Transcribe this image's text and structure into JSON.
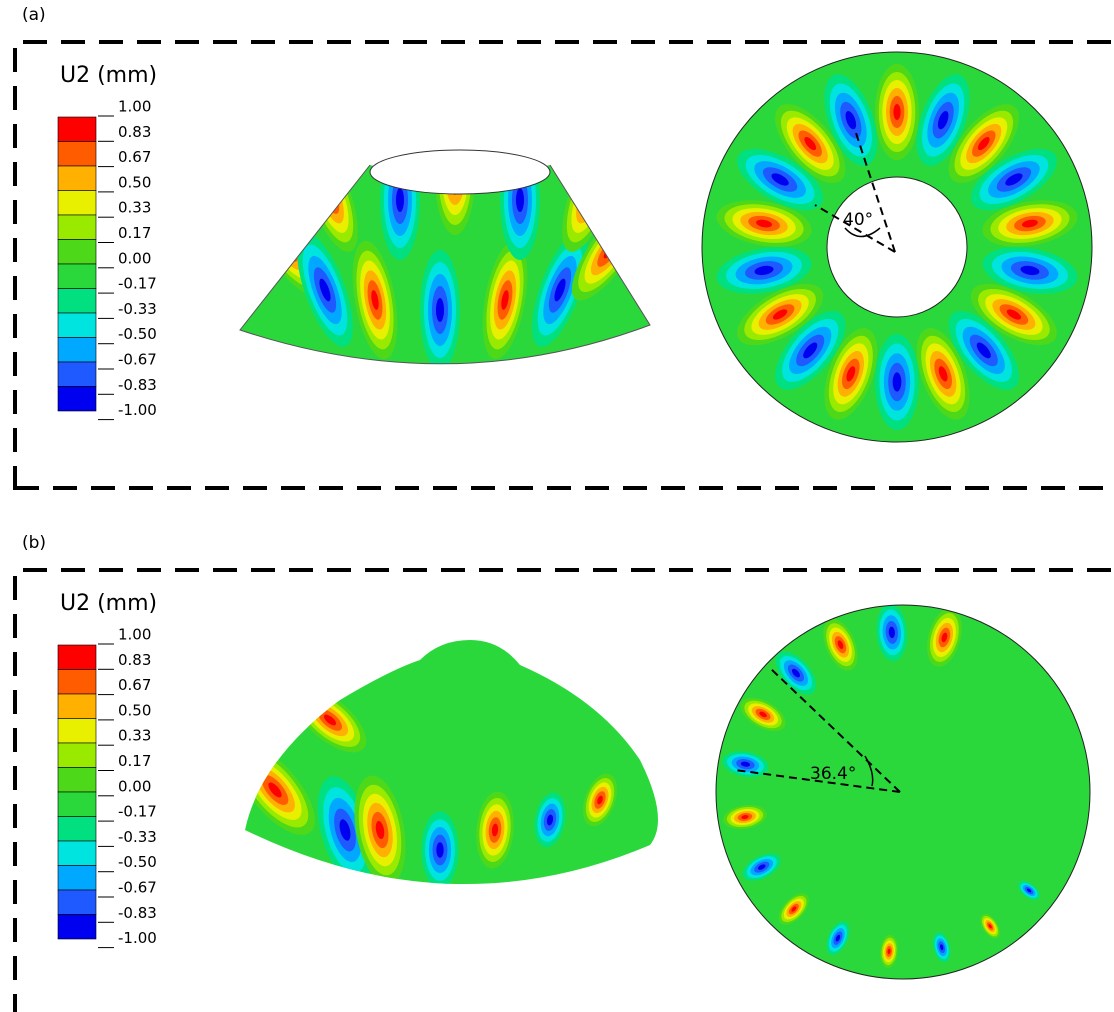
{
  "panels": [
    {
      "label": "(a)",
      "angle": "40°",
      "legend": {
        "title": "U2 (mm)",
        "levels": [
          "1.00",
          "0.83",
          "0.67",
          "0.50",
          "0.33",
          "0.17",
          "0.00",
          "-0.17",
          "-0.33",
          "-0.50",
          "-0.67",
          "-0.83",
          "-1.00"
        ],
        "colors": [
          "#ff0000",
          "#ff5c00",
          "#ffb000",
          "#e8f000",
          "#9aea00",
          "#4ed81a",
          "#2bd83c",
          "#00e080",
          "#00e4e0",
          "#00a8ff",
          "#1e5aff",
          "#0000f0"
        ]
      }
    },
    {
      "label": "(b)",
      "angle": "36.4°",
      "legend": {
        "title": "U2 (mm)",
        "levels": [
          "1.00",
          "0.83",
          "0.67",
          "0.50",
          "0.33",
          "0.17",
          "0.00",
          "-0.17",
          "-0.33",
          "-0.50",
          "-0.67",
          "-0.83",
          "-1.00"
        ],
        "colors": [
          "#ff0000",
          "#ff5c00",
          "#ffb000",
          "#e8f000",
          "#9aea00",
          "#4ed81a",
          "#2bd83c",
          "#00e080",
          "#00e4e0",
          "#00a8ff",
          "#1e5aff",
          "#0000f0"
        ]
      }
    }
  ]
}
